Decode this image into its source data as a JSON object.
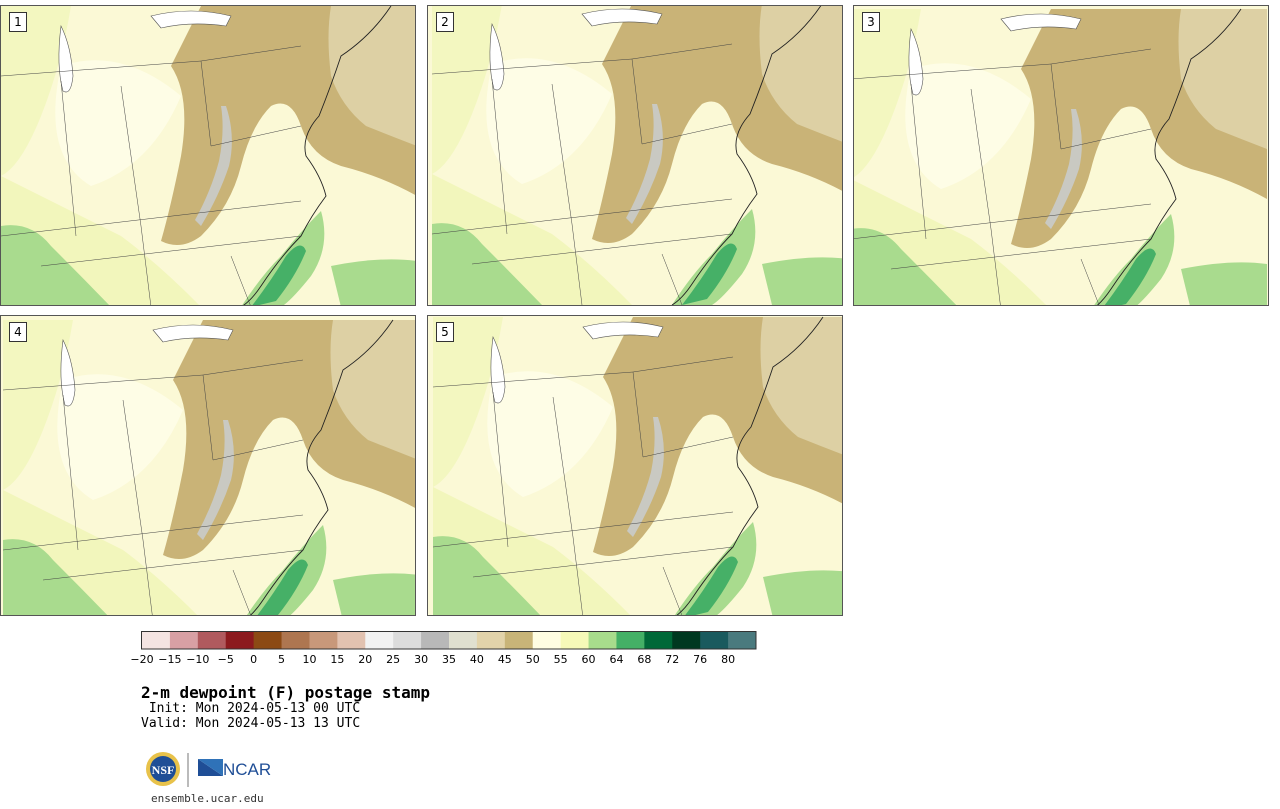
{
  "panels": [
    {
      "label": "1"
    },
    {
      "label": "2"
    },
    {
      "label": "3"
    },
    {
      "label": "4"
    },
    {
      "label": "5"
    }
  ],
  "colorbar": {
    "ticks": [
      "−20",
      "−15",
      "−10",
      "−5",
      "0",
      "5",
      "10",
      "15",
      "20",
      "25",
      "30",
      "35",
      "40",
      "45",
      "50",
      "55",
      "60",
      "64",
      "68",
      "72",
      "76",
      "80"
    ],
    "colors": [
      "#f4e4e2",
      "#d8a0a4",
      "#b05a5e",
      "#8c1a1e",
      "#8c4a14",
      "#ae7650",
      "#c8987a",
      "#e2c2b0",
      "#f2f2f2",
      "#dcdcdc",
      "#b8b8b8",
      "#e0e0d0",
      "#e2d3aa",
      "#c8b478",
      "#fffde2",
      "#f6f9b8",
      "#a8dc8c",
      "#44b066",
      "#006838",
      "#003820",
      "#1a5a5e",
      "#4a7a7e"
    ]
  },
  "title": "2-m dewpoint (F) postage stamp",
  "init": " Init: Mon 2024-05-13 00 UTC",
  "valid": "Valid: Mon 2024-05-13 13 UTC",
  "logos": {
    "nsf": "NSF",
    "ncar": "NCAR"
  },
  "site": "ensemble.ucar.edu"
}
